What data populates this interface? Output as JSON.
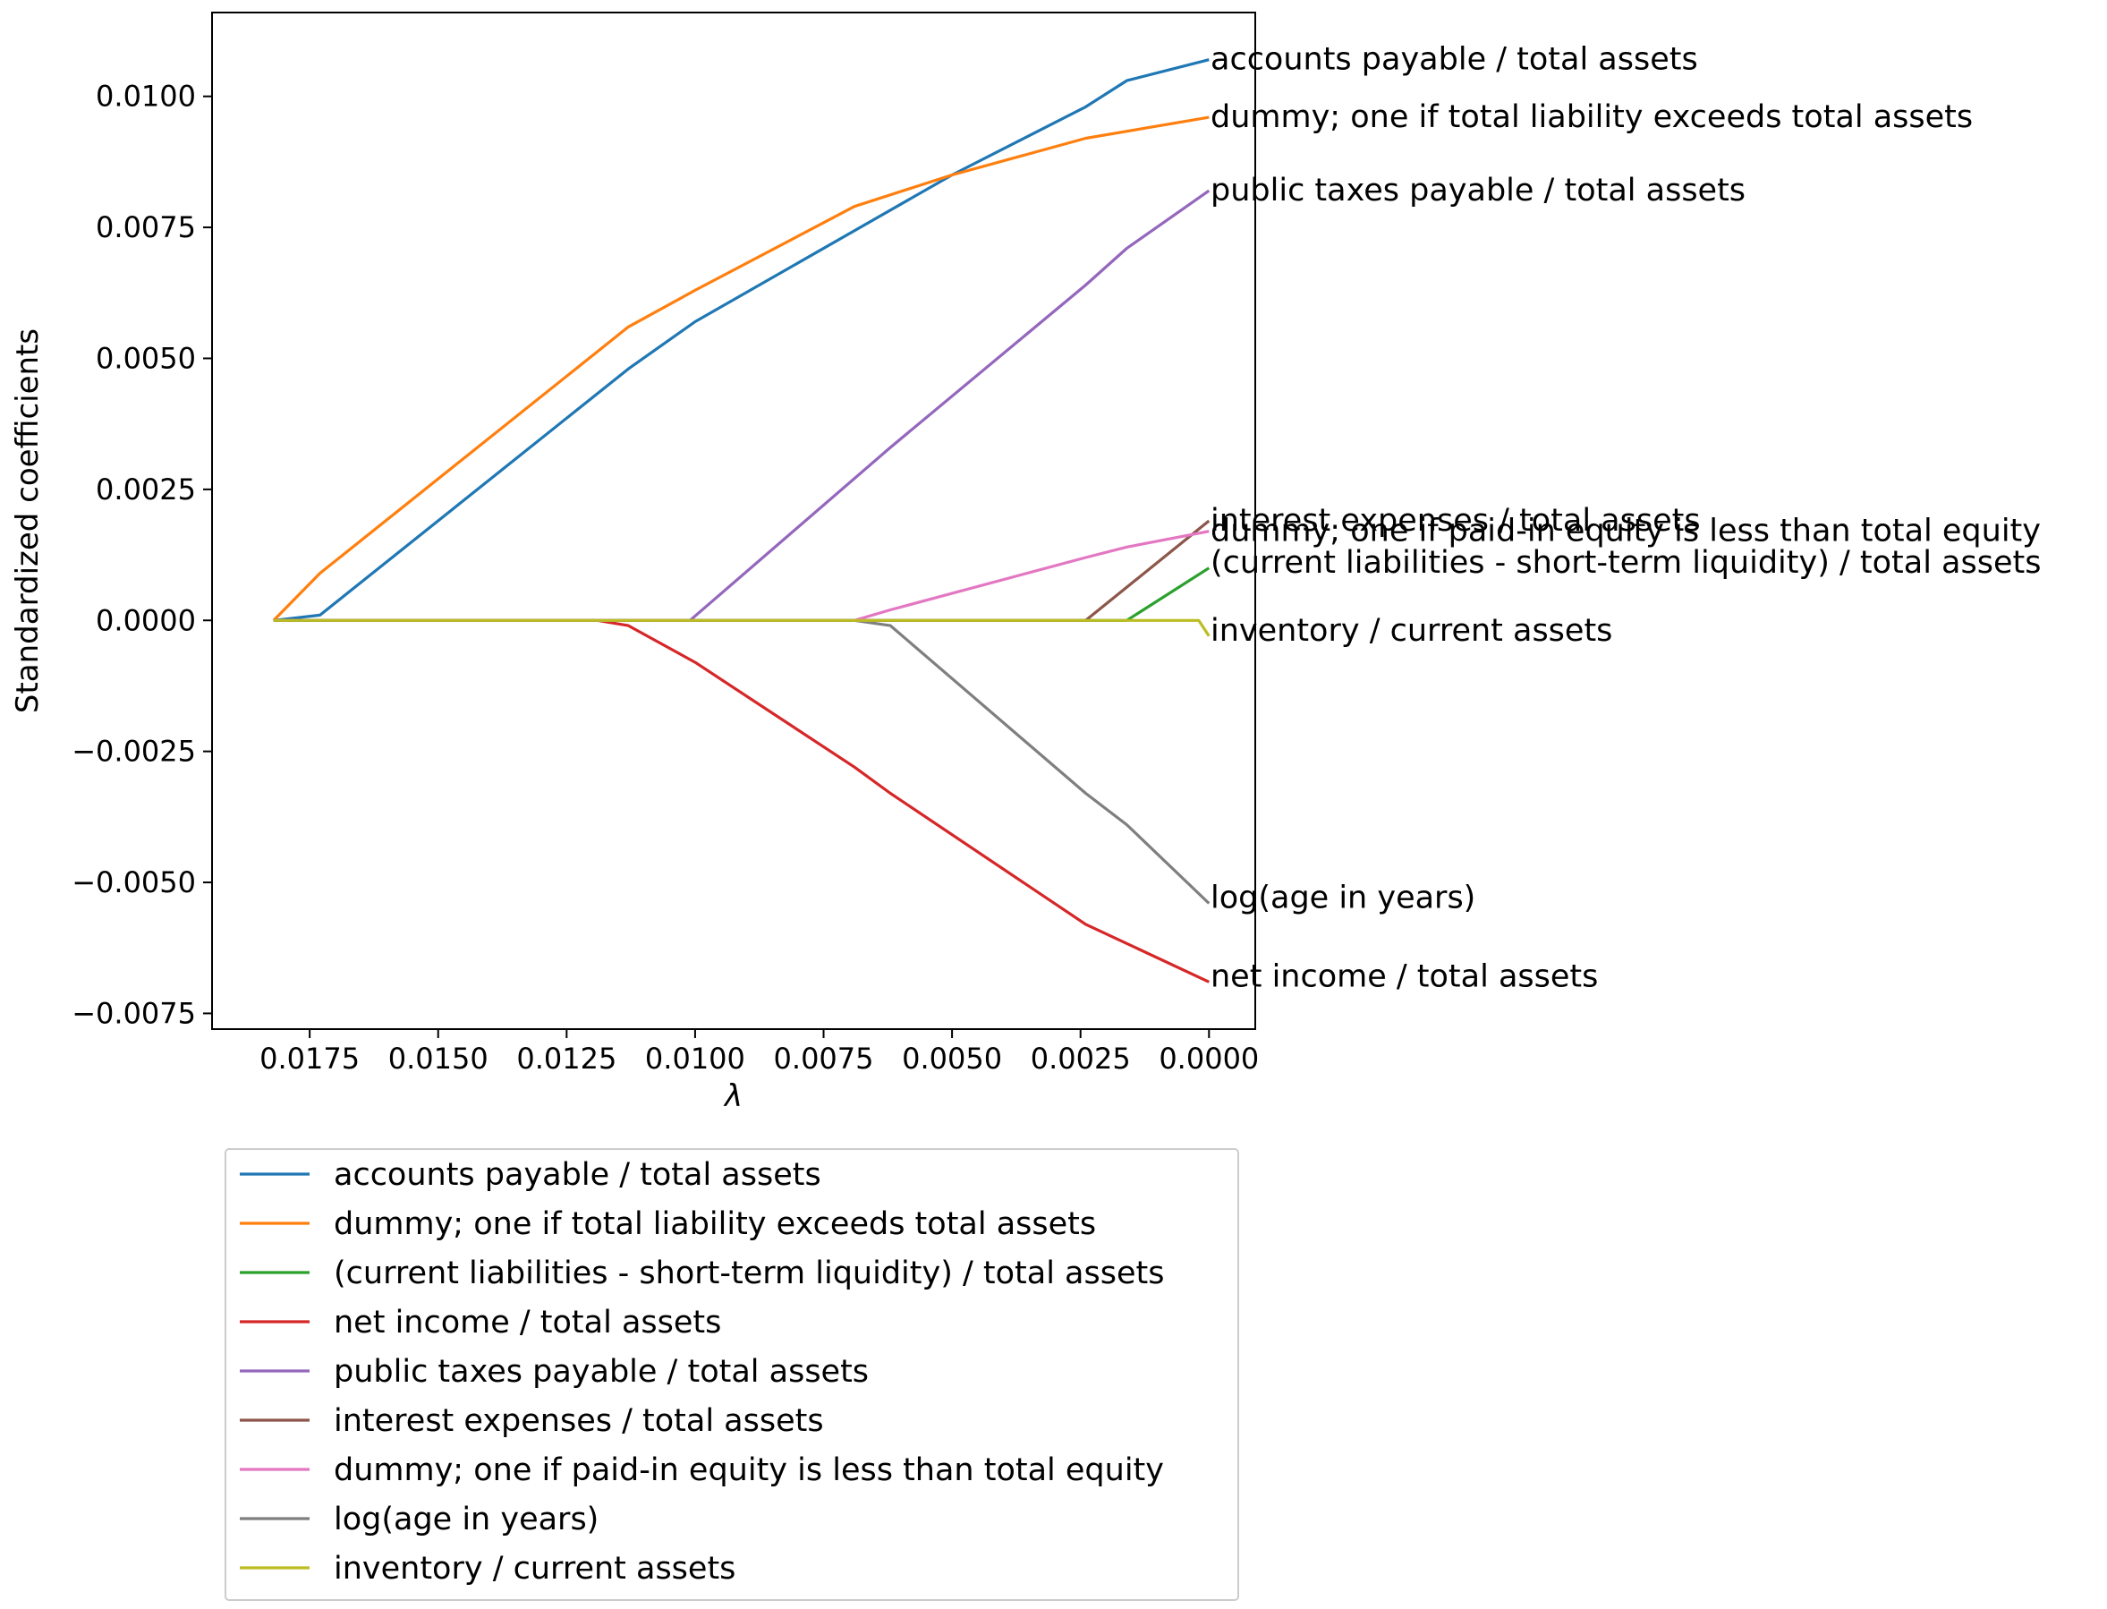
{
  "chart_data": {
    "type": "line",
    "xlabel": "λ",
    "ylabel": "Standardized coefficients",
    "xlim": [
      0.0194,
      -0.0009
    ],
    "ylim": [
      -0.0078,
      0.0116
    ],
    "x_inverted": true,
    "xticks": [
      0.0175,
      0.015,
      0.0125,
      0.01,
      0.0075,
      0.005,
      0.0025,
      0.0
    ],
    "xtick_labels": [
      "0.0175",
      "0.0150",
      "0.0125",
      "0.0100",
      "0.0075",
      "0.0050",
      "0.0025",
      "0.0000"
    ],
    "yticks": [
      0.01,
      0.0075,
      0.005,
      0.0025,
      0.0,
      -0.0025,
      -0.005,
      -0.0075
    ],
    "ytick_labels": [
      "0.0100",
      "0.0075",
      "0.0050",
      "0.0025",
      "0.0000",
      "−0.0025",
      "−0.0050",
      "−0.0075"
    ],
    "grid": false,
    "legend_position": "below plot",
    "series": [
      {
        "name": "accounts payable / total assets",
        "color": "#1f77b4",
        "x": [
          0.0182,
          0.0173,
          0.0113,
          0.01,
          0.005,
          0.0024,
          0.0016,
          0.0
        ],
        "y": [
          0.0,
          0.0001,
          0.0048,
          0.0057,
          0.0085,
          0.0098,
          0.0103,
          0.0107
        ]
      },
      {
        "name": "dummy; one if total liability exceeds total assets",
        "color": "#ff7f0e",
        "x": [
          0.0182,
          0.0173,
          0.0113,
          0.01,
          0.0069,
          0.005,
          0.0024,
          0.0
        ],
        "y": [
          0.0,
          0.0009,
          0.0056,
          0.0063,
          0.0079,
          0.0085,
          0.0092,
          0.0096
        ]
      },
      {
        "name": "(current liabilities - short-term liquidity) / total assets",
        "color": "#2ca02c",
        "x": [
          0.0182,
          0.0016,
          0.0
        ],
        "y": [
          0.0,
          0.0,
          0.001
        ]
      },
      {
        "name": "net income / total assets",
        "color": "#d62728",
        "x": [
          0.0182,
          0.0119,
          0.0113,
          0.01,
          0.0069,
          0.0062,
          0.0024,
          0.0
        ],
        "y": [
          0.0,
          0.0,
          -0.0001,
          -0.0008,
          -0.0028,
          -0.0033,
          -0.0058,
          -0.0069
        ]
      },
      {
        "name": "public taxes payable / total assets",
        "color": "#9467bd",
        "x": [
          0.0182,
          0.0101,
          0.0062,
          0.0024,
          0.0016,
          0.0
        ],
        "y": [
          0.0,
          0.0,
          0.0033,
          0.0064,
          0.0071,
          0.0082
        ]
      },
      {
        "name": "interest expenses / total assets",
        "color": "#8c564b",
        "x": [
          0.0182,
          0.0024,
          0.0
        ],
        "y": [
          0.0,
          0.0,
          0.0019
        ]
      },
      {
        "name": "dummy; one if paid-in equity is less than total equity",
        "color": "#e377c2",
        "x": [
          0.0182,
          0.0069,
          0.0062,
          0.0024,
          0.0016,
          0.0
        ],
        "y": [
          0.0,
          0.0,
          0.0002,
          0.0012,
          0.0014,
          0.0017
        ]
      },
      {
        "name": "log(age in years)",
        "color": "#7f7f7f",
        "x": [
          0.0182,
          0.0069,
          0.0062,
          0.0024,
          0.0016,
          0.0
        ],
        "y": [
          0.0,
          0.0,
          -0.0001,
          -0.0033,
          -0.0039,
          -0.0054
        ]
      },
      {
        "name": "inventory / current assets",
        "color": "#bcbd22",
        "x": [
          0.0182,
          0.0002,
          0.0
        ],
        "y": [
          0.0,
          0.0,
          -0.0003
        ]
      }
    ],
    "annotations": [
      {
        "text": "accounts payable / total assets",
        "y": 0.0107
      },
      {
        "text": "dummy; one if total liability exceeds total assets",
        "y": 0.0096
      },
      {
        "text": "public taxes payable / total assets",
        "y": 0.0082
      },
      {
        "text": "interest expenses / total assets",
        "y": 0.0019
      },
      {
        "text": "dummy; one if paid-in equity is less than total equity",
        "y": 0.0017
      },
      {
        "text": "(current liabilities - short-term liquidity) / total assets",
        "y": 0.0011
      },
      {
        "text": "inventory / current assets",
        "y": -0.0002
      },
      {
        "text": "log(age in years)",
        "y": -0.0053
      },
      {
        "text": "net income / total assets",
        "y": -0.0068
      }
    ]
  }
}
